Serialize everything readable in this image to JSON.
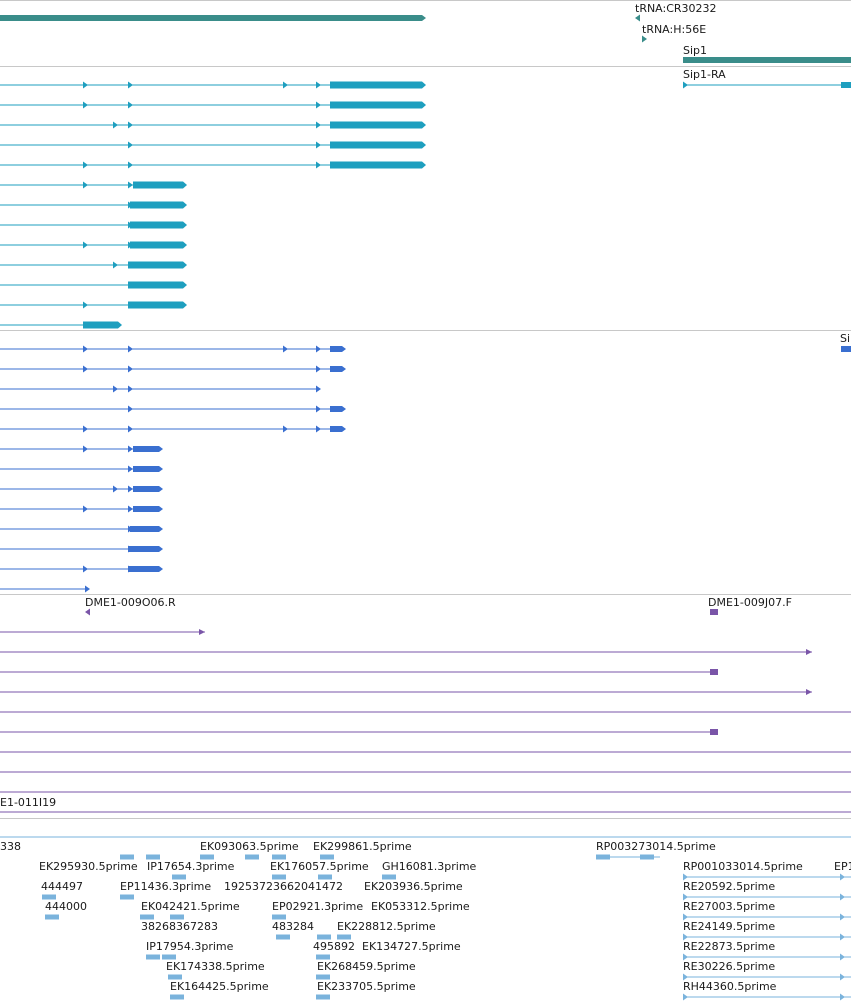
{
  "colors": {
    "gene": "#3a8d8a",
    "transcript_teal": "#1e9fbf",
    "transcript_blue": "#3a6fd0",
    "clone_purple": "#7a55a8",
    "est_light": "#7ab3dc",
    "divider": "#c8c8c8"
  },
  "labels": {
    "trna_cr30232": "tRNA:CR30232",
    "trna_h56e": "tRNA:H:56E",
    "sip1": "Sip1",
    "sip1_ra": "Sip1-RA",
    "si_truncated": "Si",
    "dme1_009o06": "DME1-009O06.R",
    "dme1_009j07": "DME1-009J07.F",
    "e1_011i19": "E1-011I19",
    "est_338": "338",
    "ek093063": "EK093063.5prime",
    "ek299861": "EK299861.5prime",
    "rp003273014": "RP003273014.5prime",
    "ek295930": "EK295930.5prime",
    "ip17654": "IP17654.3prime",
    "ek176057": "EK176057.5prime",
    "gh16081": "GH16081.3prime",
    "rp001033014": "RP001033014.5prime",
    "ep1_trunc": "EP1",
    "n444497": "444497",
    "ep11436": "EP11436.3prime",
    "n19253": "19253723662041472",
    "ek203936": "EK203936.5prime",
    "re20592": "RE20592.5prime",
    "n444000": "444000",
    "ek042421": "EK042421.5prime",
    "ep02921": "EP02921.3prime",
    "ek053312": "EK053312.5prime",
    "re27003": "RE27003.5prime",
    "n38268": "38268367283",
    "n483284": "483284",
    "ek228812": "EK228812.5prime",
    "re24149": "RE24149.5prime",
    "ip17954": "IP17954.3prime",
    "n495892": "495892",
    "ek134727": "EK134727.5prime",
    "re22873": "RE22873.5prime",
    "ek174338": "EK174338.5prime",
    "ek268459": "EK268459.5prime",
    "re30226": "RE30226.5prime",
    "ek164425": "EK164425.5prime",
    "ek233705": "EK233705.5prime",
    "rh44360": "RH44360.5prime"
  }
}
